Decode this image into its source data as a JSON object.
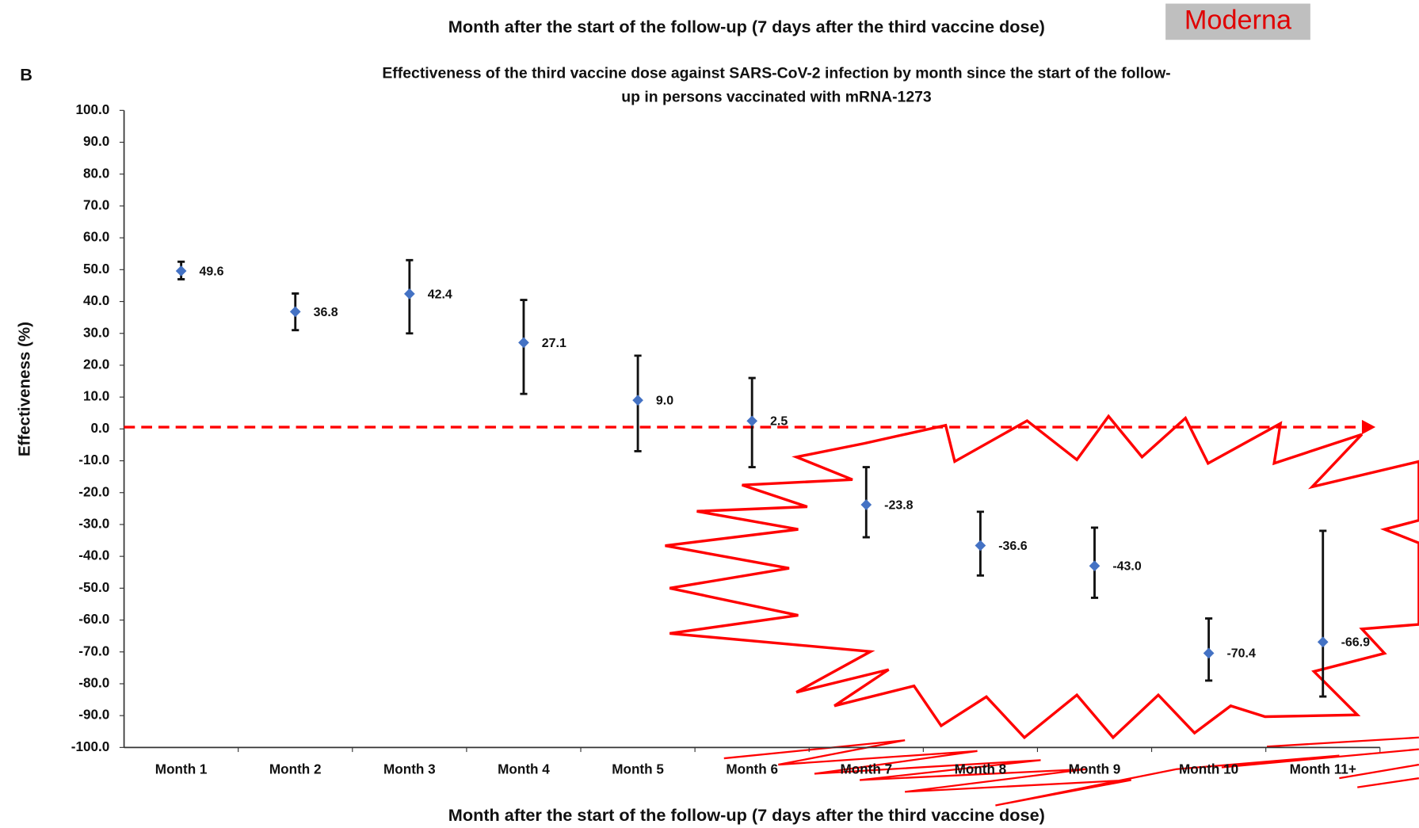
{
  "header": {
    "text": "Month after the start of the follow-up (7 days after the third vaccine dose)",
    "badge": "Moderna"
  },
  "panel_label": "B",
  "chart_data": {
    "type": "errorbar",
    "title": "Effectiveness of the third vaccine dose against SARS-CoV-2 infection by month since the start of the follow-up in persons vaccinated with mRNA-1273",
    "xlabel": "Month after the start of the follow-up (7 days after the third vaccine dose)",
    "ylabel": "Effectiveness (%)",
    "categories": [
      "Month 1",
      "Month 2",
      "Month 3",
      "Month 4",
      "Month 5",
      "Month 6",
      "Month 7",
      "Month 8",
      "Month 9",
      "Month 10",
      "Month 11+"
    ],
    "series": [
      {
        "color": "#4472c4",
        "values": [
          49.6,
          36.8,
          42.4,
          27.1,
          9.0,
          2.5,
          -23.8,
          -36.6,
          -43.0,
          -70.4,
          -66.9
        ],
        "value_labels": [
          "49.6",
          "36.8",
          "42.4",
          "27.1",
          "9.0",
          "2.5",
          "-23.8",
          "-36.6",
          "-43.0",
          "-70.4",
          "-66.9"
        ],
        "lower": [
          47,
          31,
          30,
          11,
          -7,
          -12,
          -34,
          -46,
          -53,
          -79,
          -84
        ],
        "upper": [
          52.5,
          42.5,
          53,
          40.5,
          23,
          16,
          -12,
          -26,
          -31,
          -59.5,
          -32
        ]
      }
    ],
    "ylim": [
      -100,
      100
    ],
    "yticks": [
      {
        "value": 100,
        "label": "100.0"
      },
      {
        "value": 90,
        "label": "90.0"
      },
      {
        "value": 80,
        "label": "80.0"
      },
      {
        "value": 70,
        "label": "70.0"
      },
      {
        "value": 60,
        "label": "60.0"
      },
      {
        "value": 50,
        "label": "50.0"
      },
      {
        "value": 40,
        "label": "40.0"
      },
      {
        "value": 30,
        "label": "30.0"
      },
      {
        "value": 20,
        "label": "20.0"
      },
      {
        "value": 10,
        "label": "10.0"
      },
      {
        "value": 0,
        "label": "0.0"
      },
      {
        "value": -10,
        "label": "-10.0"
      },
      {
        "value": -20,
        "label": "-20.0"
      },
      {
        "value": -30,
        "label": "-30.0"
      },
      {
        "value": -40,
        "label": "-40.0"
      },
      {
        "value": -50,
        "label": "-50.0"
      },
      {
        "value": -60,
        "label": "-60.0"
      },
      {
        "value": -70,
        "label": "-70.0"
      },
      {
        "value": -80,
        "label": "-80.0"
      },
      {
        "value": -90,
        "label": "-90.0"
      },
      {
        "value": -100,
        "label": "-100.0"
      }
    ],
    "grid": false,
    "error_color": "#111111",
    "reference_line_color": "#ff0000"
  }
}
